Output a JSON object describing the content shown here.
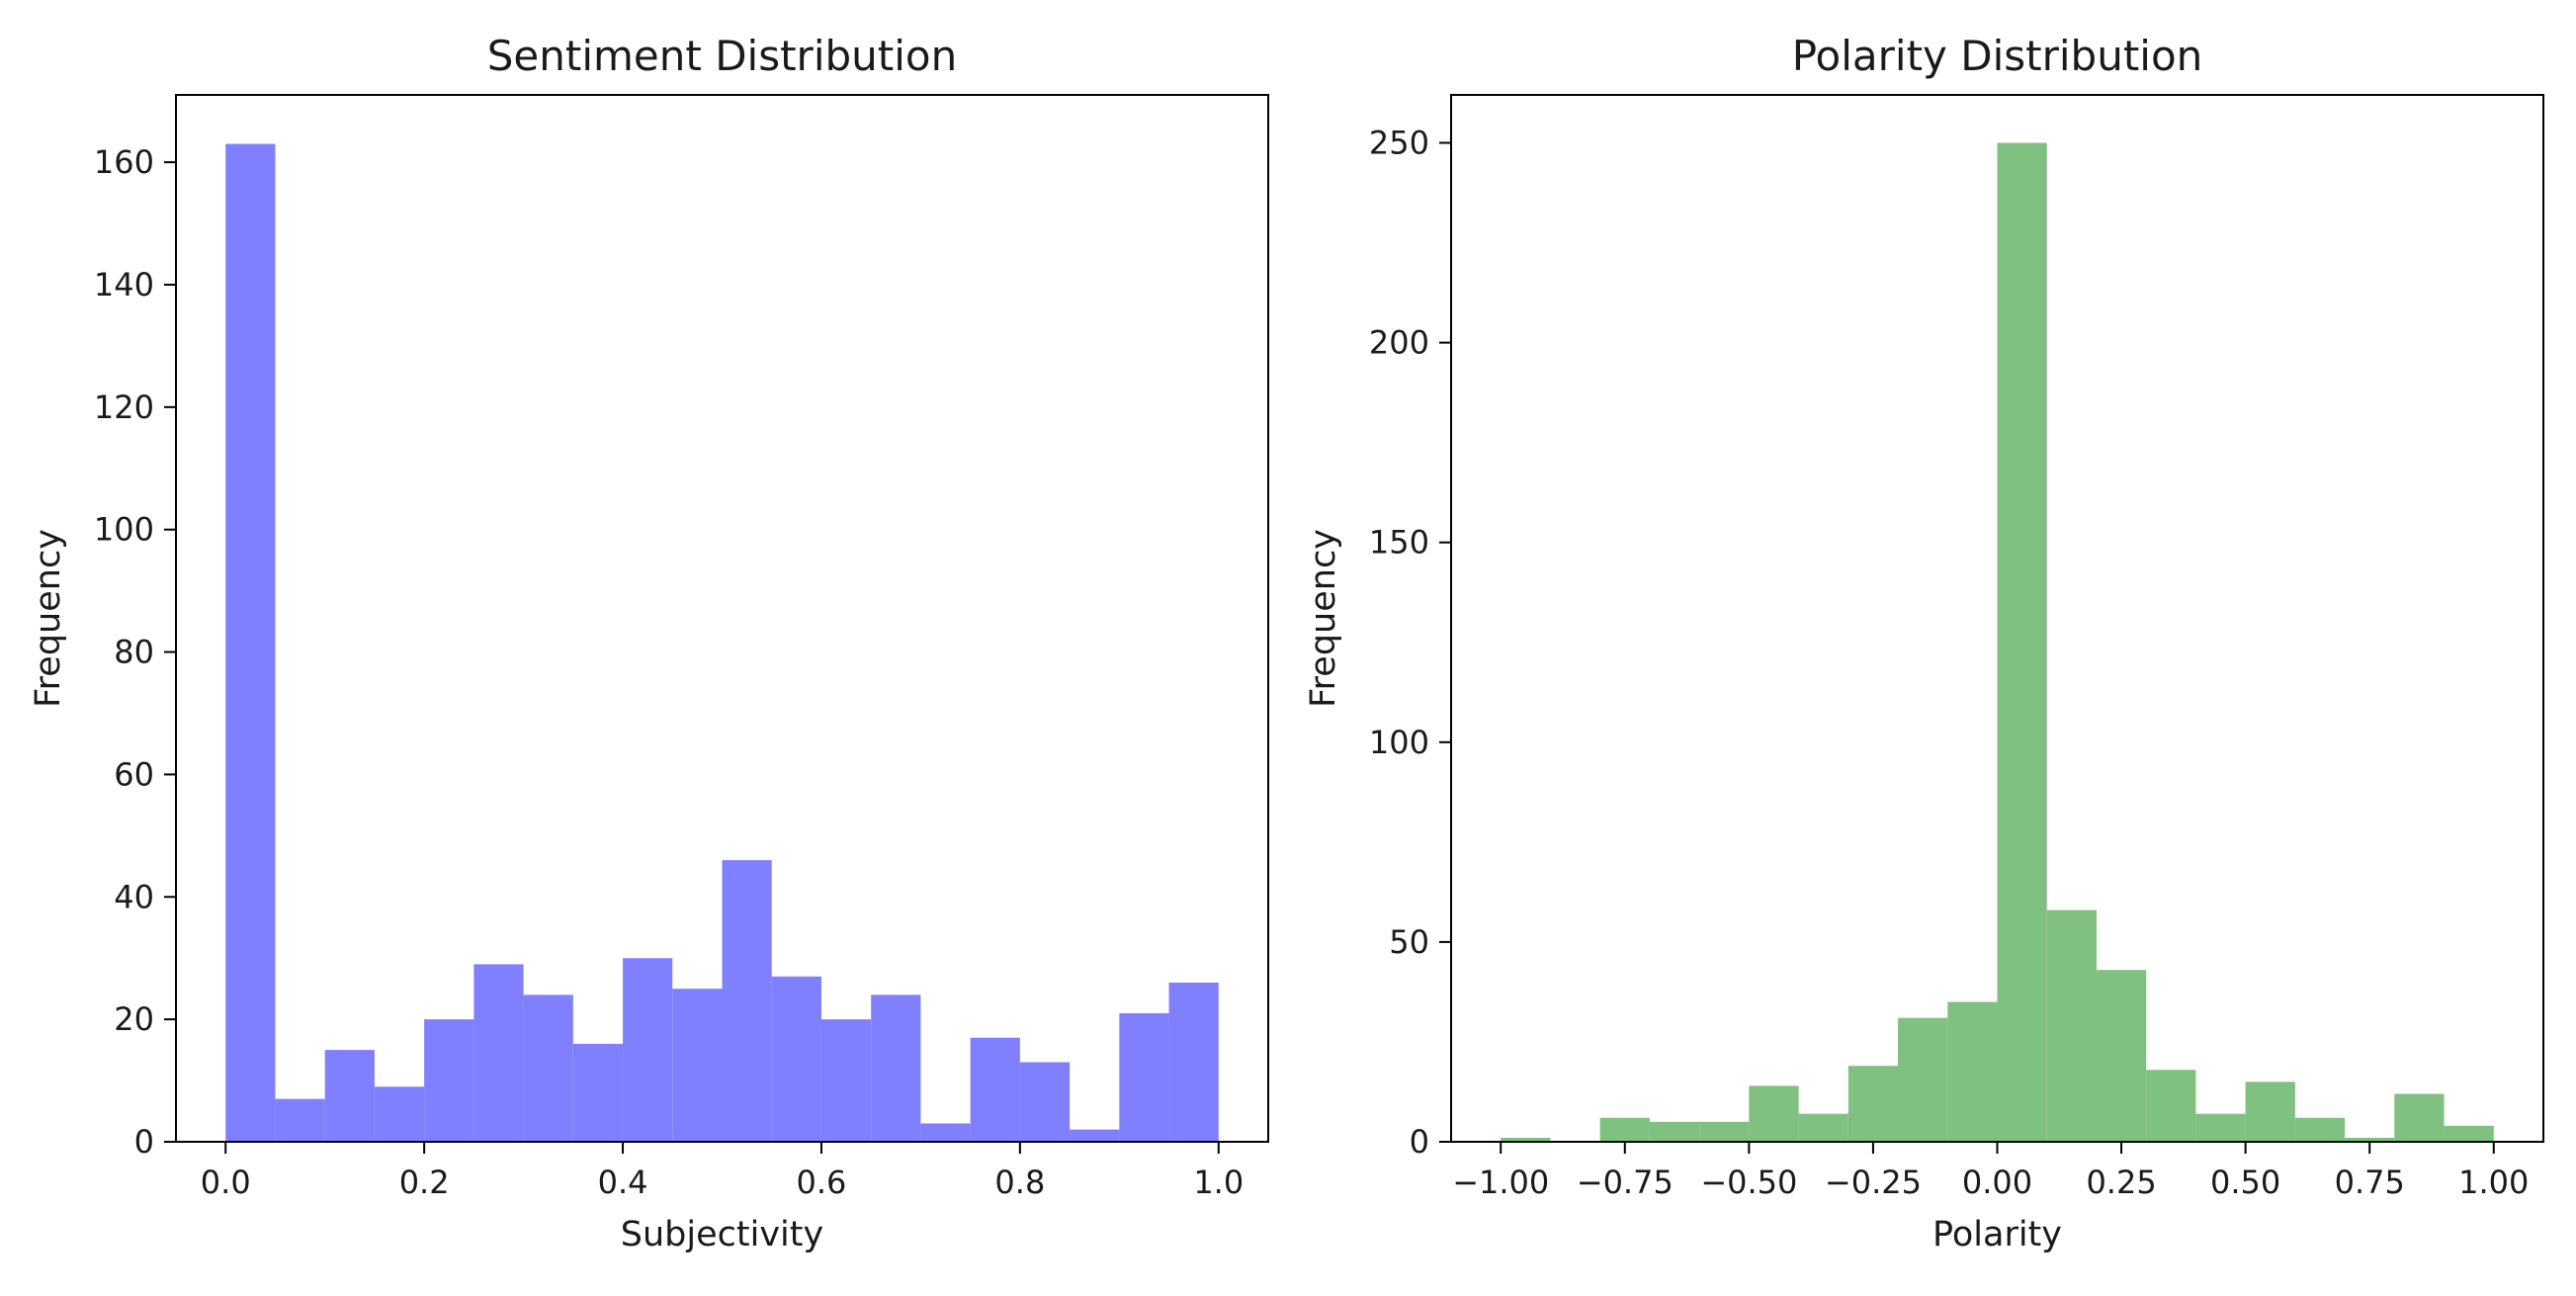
{
  "chart_data": [
    {
      "type": "bar",
      "title": "Sentiment Distribution",
      "xlabel": "Subjectivity",
      "ylabel": "Frequency",
      "color": "#8080ff",
      "xlim": [
        -0.05,
        1.05
      ],
      "ylim": [
        0,
        171
      ],
      "bin_edges": [
        0.0,
        0.05,
        0.1,
        0.15,
        0.2,
        0.25,
        0.3,
        0.35,
        0.4,
        0.45,
        0.5,
        0.55,
        0.6,
        0.65,
        0.7,
        0.75,
        0.8,
        0.85,
        0.9,
        0.95,
        1.0
      ],
      "values": [
        163,
        7,
        15,
        9,
        20,
        29,
        24,
        16,
        30,
        25,
        46,
        27,
        20,
        24,
        3,
        17,
        13,
        2,
        21,
        26
      ],
      "xticks": [
        0.0,
        0.2,
        0.4,
        0.6,
        0.8,
        1.0
      ],
      "xtick_labels": [
        "0.0",
        "0.2",
        "0.4",
        "0.6",
        "0.8",
        "1.0"
      ],
      "yticks": [
        0,
        20,
        40,
        60,
        80,
        100,
        120,
        140,
        160
      ],
      "ytick_labels": [
        "0",
        "20",
        "40",
        "60",
        "80",
        "100",
        "120",
        "140",
        "160"
      ]
    },
    {
      "type": "bar",
      "title": "Polarity Distribution",
      "xlabel": "Polarity",
      "ylabel": "Frequency",
      "color": "#80c080",
      "xlim": [
        -1.1,
        1.1
      ],
      "ylim": [
        0,
        262
      ],
      "bin_edges": [
        -1.0,
        -0.9,
        -0.8,
        -0.7,
        -0.6,
        -0.5,
        -0.4,
        -0.3,
        -0.2,
        -0.1,
        0.0,
        0.1,
        0.2,
        0.3,
        0.4,
        0.5,
        0.6,
        0.7,
        0.8,
        0.9,
        1.0
      ],
      "values": [
        1,
        0,
        6,
        5,
        5,
        14,
        7,
        19,
        31,
        35,
        250,
        58,
        43,
        18,
        7,
        15,
        6,
        1,
        12,
        4
      ],
      "xticks": [
        -1.0,
        -0.75,
        -0.5,
        -0.25,
        0.0,
        0.25,
        0.5,
        0.75,
        1.0
      ],
      "xtick_labels": [
        "−1.00",
        "−0.75",
        "−0.50",
        "−0.25",
        "0.00",
        "0.25",
        "0.50",
        "0.75",
        "1.00"
      ],
      "yticks": [
        0,
        50,
        100,
        150,
        200,
        250
      ],
      "ytick_labels": [
        "0",
        "50",
        "100",
        "150",
        "200",
        "250"
      ]
    }
  ]
}
